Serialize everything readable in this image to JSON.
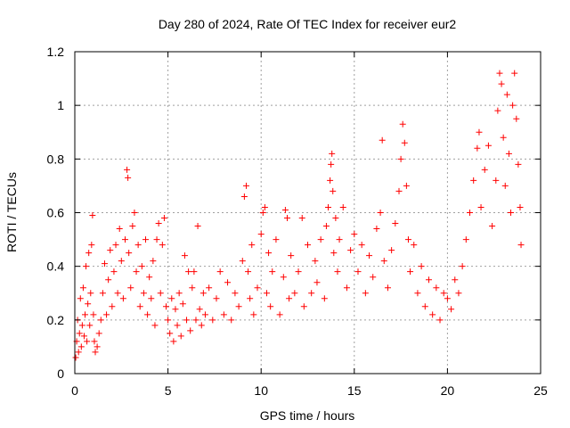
{
  "chart_data": {
    "type": "scatter",
    "title": "Day 280 of 2024, Rate Of TEC Index for receiver eur2",
    "xlabel": "GPS time / hours",
    "ylabel": "ROTI / TECUs",
    "xlim": [
      0,
      25
    ],
    "ylim": [
      0,
      1.2
    ],
    "x_ticks": [
      0,
      5,
      10,
      15,
      20,
      25
    ],
    "x_tick_labels": [
      "0",
      "5",
      "10",
      "15",
      "20",
      "25"
    ],
    "y_ticks": [
      0,
      0.2,
      0.4,
      0.6,
      0.8,
      1.0,
      1.2
    ],
    "y_tick_labels": [
      "0",
      "0.2",
      "0.4",
      "0.6",
      "0.8",
      "1",
      "1.2"
    ],
    "grid": true,
    "marker": "plus",
    "marker_color": "#ff0000",
    "series": [
      {
        "points": [
          [
            0.05,
            0.06
          ],
          [
            0.1,
            0.12
          ],
          [
            0.15,
            0.2
          ],
          [
            0.2,
            0.08
          ],
          [
            0.25,
            0.15
          ],
          [
            0.3,
            0.28
          ],
          [
            0.35,
            0.1
          ],
          [
            0.4,
            0.18
          ],
          [
            0.45,
            0.32
          ],
          [
            0.5,
            0.14
          ],
          [
            0.55,
            0.22
          ],
          [
            0.6,
            0.4
          ],
          [
            0.65,
            0.12
          ],
          [
            0.7,
            0.26
          ],
          [
            0.75,
            0.45
          ],
          [
            0.8,
            0.18
          ],
          [
            0.85,
            0.3
          ],
          [
            0.9,
            0.48
          ],
          [
            0.95,
            0.59
          ],
          [
            1.0,
            0.22
          ],
          [
            1.05,
            0.12
          ],
          [
            1.1,
            0.08
          ],
          [
            1.2,
            0.1
          ],
          [
            1.3,
            0.15
          ],
          [
            1.4,
            0.2
          ],
          [
            1.5,
            0.3
          ],
          [
            1.6,
            0.41
          ],
          [
            1.7,
            0.22
          ],
          [
            1.8,
            0.35
          ],
          [
            1.9,
            0.46
          ],
          [
            2.0,
            0.25
          ],
          [
            2.1,
            0.38
          ],
          [
            2.2,
            0.48
          ],
          [
            2.3,
            0.3
          ],
          [
            2.4,
            0.54
          ],
          [
            2.5,
            0.42
          ],
          [
            2.6,
            0.28
          ],
          [
            2.7,
            0.5
          ],
          [
            2.8,
            0.76
          ],
          [
            2.85,
            0.73
          ],
          [
            2.9,
            0.45
          ],
          [
            3.0,
            0.32
          ],
          [
            3.1,
            0.55
          ],
          [
            3.2,
            0.6
          ],
          [
            3.3,
            0.38
          ],
          [
            3.4,
            0.48
          ],
          [
            3.5,
            0.25
          ],
          [
            3.6,
            0.4
          ],
          [
            3.7,
            0.3
          ],
          [
            3.8,
            0.5
          ],
          [
            3.9,
            0.22
          ],
          [
            4.0,
            0.36
          ],
          [
            4.1,
            0.28
          ],
          [
            4.2,
            0.42
          ],
          [
            4.3,
            0.18
          ],
          [
            4.4,
            0.5
          ],
          [
            4.5,
            0.56
          ],
          [
            4.6,
            0.3
          ],
          [
            4.7,
            0.48
          ],
          [
            4.8,
            0.58
          ],
          [
            4.9,
            0.25
          ],
          [
            5.0,
            0.2
          ],
          [
            5.1,
            0.15
          ],
          [
            5.2,
            0.28
          ],
          [
            5.3,
            0.12
          ],
          [
            5.4,
            0.24
          ],
          [
            5.5,
            0.18
          ],
          [
            5.6,
            0.3
          ],
          [
            5.7,
            0.14
          ],
          [
            5.8,
            0.26
          ],
          [
            5.9,
            0.44
          ],
          [
            6.0,
            0.2
          ],
          [
            6.1,
            0.38
          ],
          [
            6.2,
            0.16
          ],
          [
            6.3,
            0.32
          ],
          [
            6.4,
            0.38
          ],
          [
            6.5,
            0.2
          ],
          [
            6.6,
            0.55
          ],
          [
            6.7,
            0.24
          ],
          [
            6.8,
            0.18
          ],
          [
            6.9,
            0.3
          ],
          [
            7.0,
            0.22
          ],
          [
            7.2,
            0.32
          ],
          [
            7.4,
            0.2
          ],
          [
            7.6,
            0.28
          ],
          [
            7.8,
            0.38
          ],
          [
            8.0,
            0.22
          ],
          [
            8.2,
            0.34
          ],
          [
            8.4,
            0.2
          ],
          [
            8.6,
            0.3
          ],
          [
            8.8,
            0.25
          ],
          [
            9.0,
            0.42
          ],
          [
            9.1,
            0.66
          ],
          [
            9.2,
            0.7
          ],
          [
            9.3,
            0.38
          ],
          [
            9.4,
            0.28
          ],
          [
            9.5,
            0.48
          ],
          [
            9.6,
            0.22
          ],
          [
            9.8,
            0.32
          ],
          [
            10.0,
            0.52
          ],
          [
            10.1,
            0.6
          ],
          [
            10.2,
            0.62
          ],
          [
            10.3,
            0.3
          ],
          [
            10.4,
            0.45
          ],
          [
            10.5,
            0.25
          ],
          [
            10.6,
            0.38
          ],
          [
            10.8,
            0.5
          ],
          [
            11.0,
            0.22
          ],
          [
            11.2,
            0.36
          ],
          [
            11.3,
            0.61
          ],
          [
            11.4,
            0.58
          ],
          [
            11.5,
            0.28
          ],
          [
            11.6,
            0.44
          ],
          [
            11.8,
            0.3
          ],
          [
            12.0,
            0.38
          ],
          [
            12.2,
            0.58
          ],
          [
            12.3,
            0.25
          ],
          [
            12.5,
            0.48
          ],
          [
            12.7,
            0.3
          ],
          [
            12.9,
            0.42
          ],
          [
            13.0,
            0.34
          ],
          [
            13.2,
            0.5
          ],
          [
            13.4,
            0.28
          ],
          [
            13.5,
            0.55
          ],
          [
            13.6,
            0.62
          ],
          [
            13.7,
            0.72
          ],
          [
            13.75,
            0.78
          ],
          [
            13.8,
            0.82
          ],
          [
            13.85,
            0.68
          ],
          [
            13.9,
            0.45
          ],
          [
            14.0,
            0.58
          ],
          [
            14.1,
            0.38
          ],
          [
            14.2,
            0.5
          ],
          [
            14.4,
            0.62
          ],
          [
            14.6,
            0.32
          ],
          [
            14.8,
            0.46
          ],
          [
            15.0,
            0.52
          ],
          [
            15.2,
            0.38
          ],
          [
            15.4,
            0.48
          ],
          [
            15.6,
            0.3
          ],
          [
            15.8,
            0.44
          ],
          [
            16.0,
            0.36
          ],
          [
            16.2,
            0.54
          ],
          [
            16.4,
            0.6
          ],
          [
            16.5,
            0.87
          ],
          [
            16.6,
            0.42
          ],
          [
            16.8,
            0.32
          ],
          [
            17.0,
            0.46
          ],
          [
            17.2,
            0.56
          ],
          [
            17.4,
            0.68
          ],
          [
            17.5,
            0.8
          ],
          [
            17.6,
            0.93
          ],
          [
            17.7,
            0.86
          ],
          [
            17.8,
            0.7
          ],
          [
            17.9,
            0.5
          ],
          [
            18.0,
            0.38
          ],
          [
            18.2,
            0.48
          ],
          [
            18.4,
            0.3
          ],
          [
            18.6,
            0.4
          ],
          [
            18.8,
            0.25
          ],
          [
            19.0,
            0.35
          ],
          [
            19.2,
            0.22
          ],
          [
            19.4,
            0.32
          ],
          [
            19.6,
            0.2
          ],
          [
            19.8,
            0.3
          ],
          [
            20.0,
            0.28
          ],
          [
            20.2,
            0.24
          ],
          [
            20.4,
            0.35
          ],
          [
            20.6,
            0.3
          ],
          [
            20.8,
            0.4
          ],
          [
            21.0,
            0.5
          ],
          [
            21.2,
            0.6
          ],
          [
            21.4,
            0.72
          ],
          [
            21.6,
            0.84
          ],
          [
            21.7,
            0.9
          ],
          [
            21.8,
            0.62
          ],
          [
            22.0,
            0.76
          ],
          [
            22.2,
            0.85
          ],
          [
            22.4,
            0.55
          ],
          [
            22.6,
            0.72
          ],
          [
            22.7,
            0.98
          ],
          [
            22.8,
            1.12
          ],
          [
            22.9,
            1.08
          ],
          [
            23.0,
            0.88
          ],
          [
            23.1,
            0.7
          ],
          [
            23.2,
            1.04
          ],
          [
            23.3,
            0.82
          ],
          [
            23.4,
            0.6
          ],
          [
            23.5,
            1.0
          ],
          [
            23.6,
            1.12
          ],
          [
            23.7,
            0.95
          ],
          [
            23.8,
            0.78
          ],
          [
            23.9,
            0.62
          ],
          [
            23.95,
            0.48
          ]
        ]
      }
    ]
  }
}
